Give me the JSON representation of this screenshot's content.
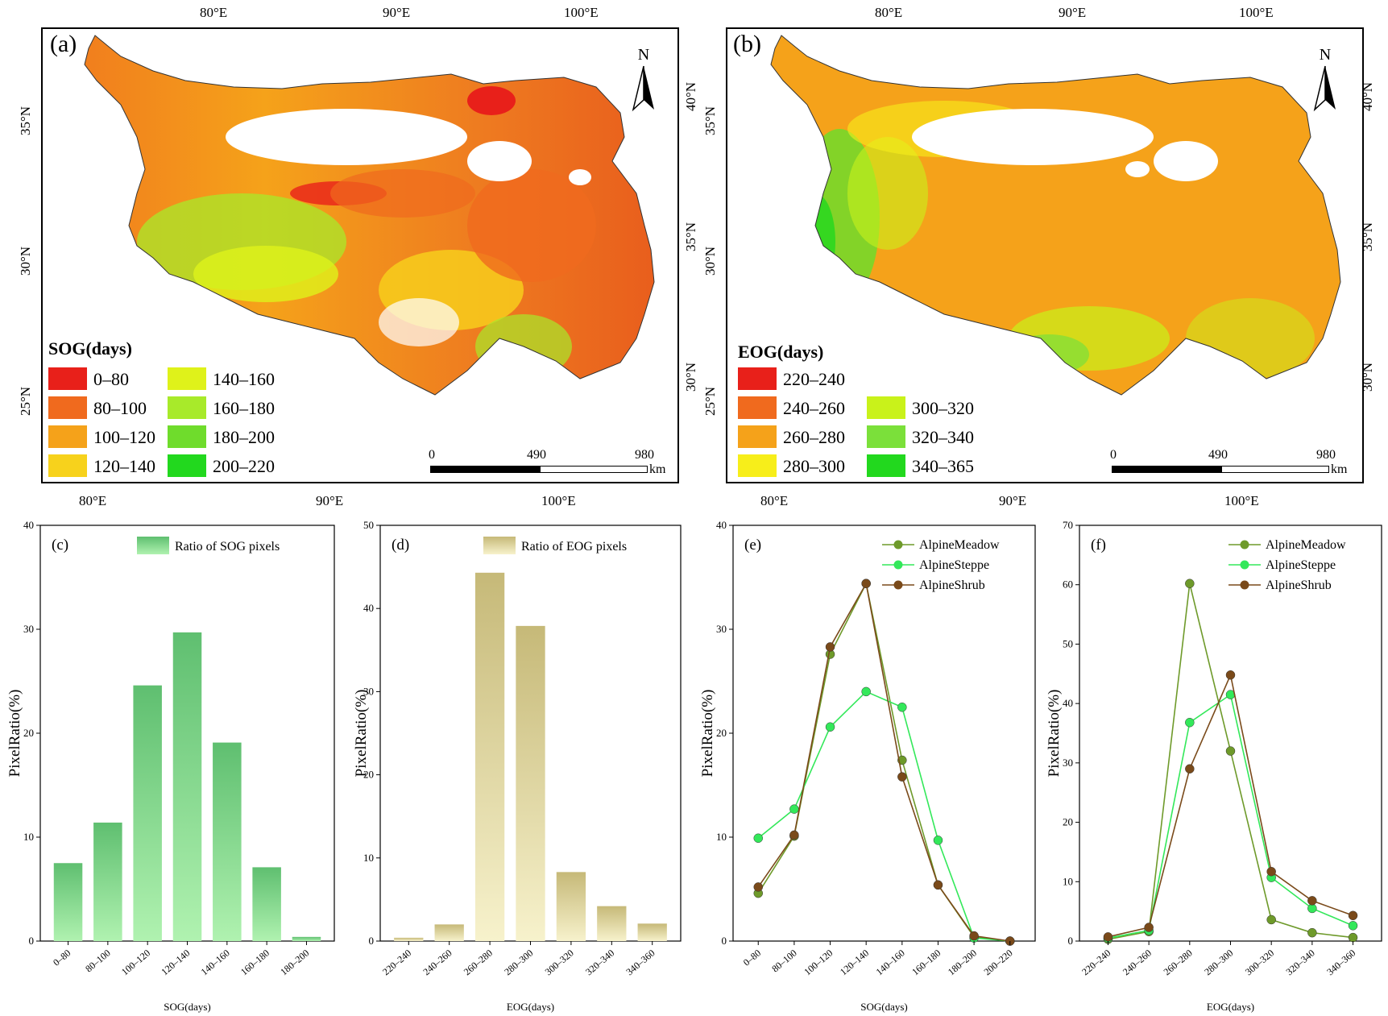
{
  "colors": {
    "sog": [
      "#e8201a",
      "#f06a1e",
      "#f5a21a",
      "#f7d21c",
      "#dff21a",
      "#a8ea2a",
      "#6fdc2c",
      "#22d81e"
    ],
    "eog": [
      "#e8201a",
      "#f06a1e",
      "#f5a21a",
      "#f7ee1a",
      "#c9f21a",
      "#7be03a",
      "#22d81e"
    ],
    "meadow": "#6e9a2a",
    "steppe": "#33e85a",
    "shrub": "#7a4a1a",
    "bar_c": "#6cc77c",
    "bar_d": "#d8cf96"
  },
  "maps": [
    {
      "panel": "(a)",
      "top_lon": [
        "80°E",
        "90°E",
        "100°E"
      ],
      "bottom_lon": [
        "80°E",
        "90°E",
        "100°E"
      ],
      "left_lat": [
        "35°N",
        "30°N",
        "25°N"
      ],
      "right_lat": [
        "40°N",
        "35°N",
        "30°N"
      ],
      "north": "N",
      "legend_title": "SOG(days)",
      "legend": [
        "0–80",
        "80–100",
        "100–120",
        "120–140",
        "140–160",
        "160–180",
        "180–200",
        "200–220"
      ],
      "scale": [
        "0",
        "490",
        "980"
      ],
      "scale_unit": "km"
    },
    {
      "panel": "(b)",
      "top_lon": [
        "80°E",
        "90°E",
        "100°E"
      ],
      "bottom_lon": [
        "80°E",
        "90°E",
        "100°E"
      ],
      "left_lat": [
        "35°N",
        "30°N",
        "25°N"
      ],
      "right_lat": [
        "40°N",
        "35°N",
        "30°N"
      ],
      "north": "N",
      "legend_title": "EOG(days)",
      "legend": [
        "220–240",
        "240–260",
        "260–280",
        "280–300",
        "300–320",
        "320–340",
        "340–365"
      ],
      "scale": [
        "0",
        "490",
        "980"
      ],
      "scale_unit": "km"
    }
  ],
  "chart_data": [
    {
      "panel": "(c)",
      "type": "bar",
      "categories": [
        "0–80",
        "80–100",
        "100–120",
        "120–140",
        "140–160",
        "160–180",
        "180–200"
      ],
      "values": [
        7.5,
        11.4,
        24.6,
        29.7,
        19.1,
        7.1,
        0.4
      ],
      "legend": "Ratio of SOG pixels",
      "xlabel": "SOG(days)",
      "ylabel": "PixelRatio(%)",
      "ylim": [
        0,
        40
      ],
      "yticks": [
        "0",
        "10",
        "20",
        "30",
        "40"
      ]
    },
    {
      "panel": "(d)",
      "type": "bar",
      "categories": [
        "220–240",
        "240–260",
        "260–280",
        "280–300",
        "300–320",
        "320–340",
        "340–360"
      ],
      "values": [
        0.4,
        2.0,
        44.3,
        37.9,
        8.3,
        4.2,
        2.1
      ],
      "legend": "Ratio of EOG pixels",
      "xlabel": "EOG(days)",
      "ylabel": "PixelRatio(%)",
      "ylim": [
        0,
        50
      ],
      "yticks": [
        "0",
        "10",
        "20",
        "30",
        "40",
        "50"
      ]
    },
    {
      "panel": "(e)",
      "type": "line",
      "categories": [
        "0–80",
        "80–100",
        "100–120",
        "120–140",
        "140–160",
        "160–180",
        "180–200",
        "200–220"
      ],
      "series": [
        {
          "name": "AlpineMeadow",
          "values": [
            4.6,
            10.1,
            27.6,
            34.4,
            17.4,
            5.4,
            0.4,
            0.0
          ]
        },
        {
          "name": "AlpineSteppe",
          "values": [
            9.9,
            12.7,
            20.6,
            24.0,
            22.5,
            9.7,
            0.3,
            0.0
          ]
        },
        {
          "name": "AlpineShrub",
          "values": [
            5.2,
            10.2,
            28.3,
            34.4,
            15.8,
            5.4,
            0.5,
            0.0
          ]
        }
      ],
      "xlabel": "SOG(days)",
      "ylabel": "PixelRatio(%)",
      "ylim": [
        0,
        40
      ],
      "yticks": [
        "0",
        "10",
        "20",
        "30",
        "40"
      ]
    },
    {
      "panel": "(f)",
      "type": "line",
      "categories": [
        "220–240",
        "240–260",
        "260–280",
        "280–300",
        "300–320",
        "320–340",
        "340–360"
      ],
      "series": [
        {
          "name": "AlpineMeadow",
          "values": [
            0.3,
            1.6,
            60.2,
            32.0,
            3.6,
            1.4,
            0.6
          ]
        },
        {
          "name": "AlpineSteppe",
          "values": [
            0.5,
            1.8,
            36.8,
            41.5,
            10.7,
            5.5,
            2.6
          ]
        },
        {
          "name": "AlpineShrub",
          "values": [
            0.7,
            2.3,
            29.0,
            44.8,
            11.7,
            6.8,
            4.3
          ]
        }
      ],
      "xlabel": "EOG(days)",
      "ylabel": "PixelRatio(%)",
      "ylim": [
        0,
        70
      ],
      "yticks": [
        "0",
        "10",
        "20",
        "30",
        "40",
        "50",
        "60",
        "70"
      ]
    }
  ]
}
